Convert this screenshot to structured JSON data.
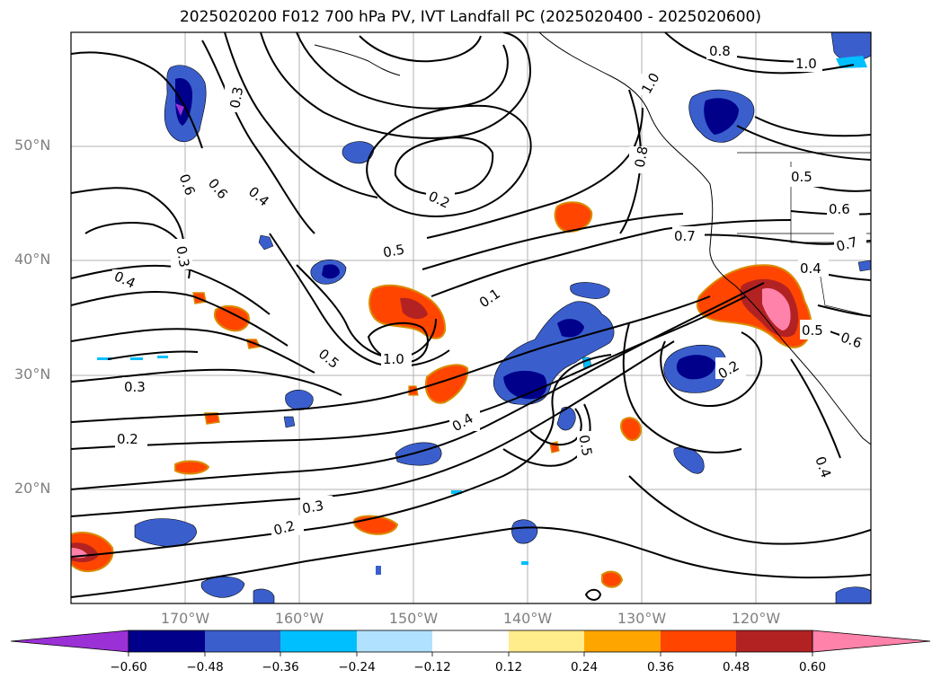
{
  "title": "2025020200 F012 700 hPa PV, IVT Landfall PC (2025020400 - 2025020600)",
  "lat_labels": [
    "50°N",
    "40°N",
    "30°N",
    "20°N"
  ],
  "lon_labels": [
    "170°W",
    "160°W",
    "150°W",
    "140°W",
    "130°W",
    "120°W"
  ],
  "colorbar": {
    "ticks": [
      "−0.60",
      "−0.48",
      "−0.36",
      "−0.24",
      "−0.12",
      "0.12",
      "0.24",
      "0.36",
      "0.48",
      "0.60"
    ],
    "colors": [
      "#9b30d6",
      "#00008b",
      "#3a5fcd",
      "#00bfff",
      "#b0e2ff",
      "#ffffff",
      "#ffec8b",
      "#ffa500",
      "#ff4500",
      "#b22222",
      "#ff82ab"
    ]
  },
  "contour_labels": [
    "0.8",
    "1.0",
    "0.8",
    "1.0",
    "0.3",
    "0.6",
    "0.6",
    "0.4",
    "0.2",
    "0.3",
    "0.4",
    "0.5",
    "0.5",
    "0.6",
    "0.7",
    "0.7",
    "0.4",
    "0.1",
    "1.0",
    "0.5",
    "0.5",
    "0.6",
    "0.2",
    "0.3",
    "0.2",
    "0.4",
    "0.5",
    "0.3",
    "0.2",
    "0.4"
  ]
}
